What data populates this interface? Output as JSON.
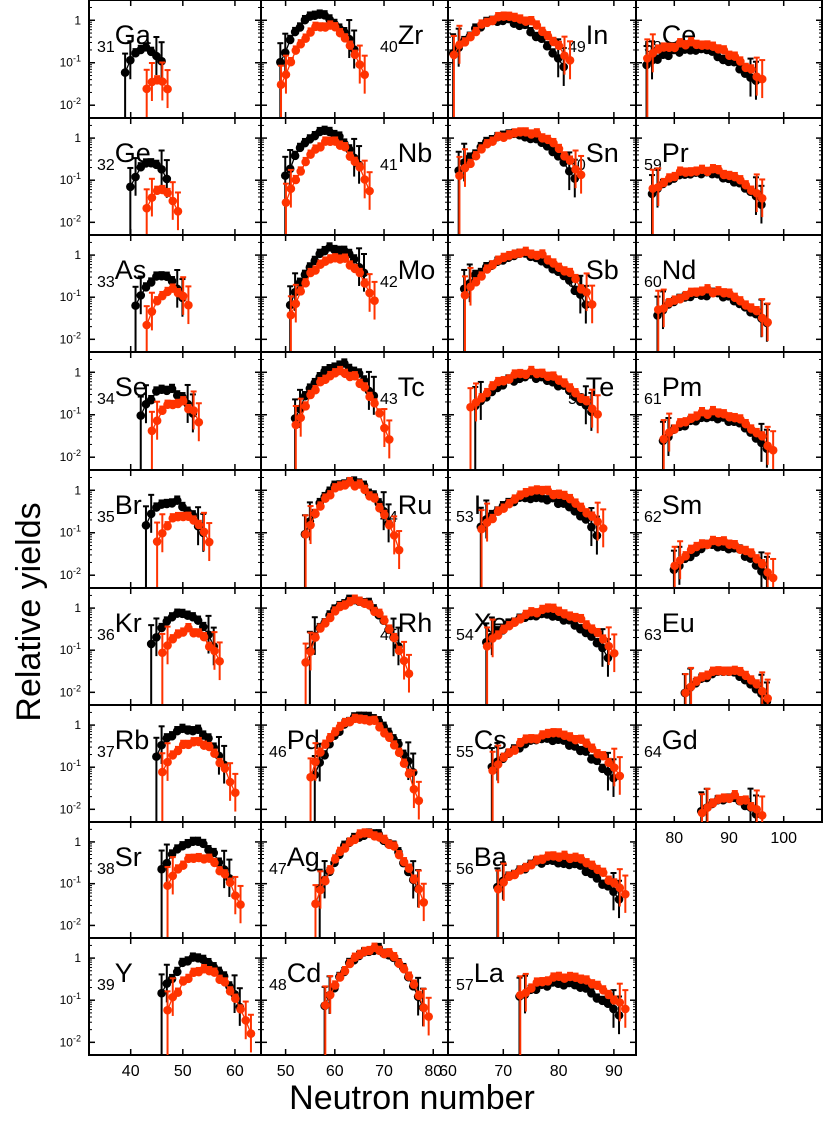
{
  "chart_data": {
    "type": "scatter",
    "title": "",
    "xlabel": "Neutron number",
    "ylabel": "Relative yields",
    "yscale": "log",
    "ylim": [
      0.005,
      3
    ],
    "y_ticks": [
      {
        "base": "10",
        "exp": "-2",
        "value": 0.01
      },
      {
        "base": "10",
        "exp": "-1",
        "value": 0.1
      },
      {
        "base": "1",
        "exp": "",
        "value": 1
      }
    ],
    "series_colors": {
      "black": "#000000",
      "red": "#ff3300"
    },
    "columns": [
      {
        "xlim": [
          32,
          65
        ],
        "x_ticks": [
          "40",
          "50",
          "60"
        ],
        "x_tick_values": [
          40,
          50,
          60
        ]
      },
      {
        "xlim": [
          45,
          83
        ],
        "x_ticks": [
          "50",
          "60",
          "70",
          "80"
        ],
        "x_tick_values": [
          50,
          60,
          70,
          80
        ]
      },
      {
        "xlim": [
          60,
          94
        ],
        "x_ticks": [
          "60",
          "70",
          "80",
          "90"
        ],
        "x_tick_values": [
          60,
          70,
          80,
          90
        ]
      },
      {
        "xlim": [
          73,
          107
        ],
        "x_ticks": [
          "80",
          "90",
          "100"
        ],
        "x_tick_values": [
          80,
          90,
          100
        ]
      }
    ],
    "panels": [
      {
        "z": "31",
        "el": "Ga",
        "col": 0,
        "row": 0,
        "label_pos": "left",
        "black": {
          "peak_n": 43,
          "peak_y": 0.22,
          "sigma": 2.5,
          "n_min": 39,
          "n_max": 46
        },
        "red": {
          "peak_n": 45,
          "peak_y": 0.04,
          "sigma": 2.0,
          "n_min": 43,
          "n_max": 47
        }
      },
      {
        "z": "32",
        "el": "Ge",
        "col": 0,
        "row": 1,
        "label_pos": "left",
        "black": {
          "peak_n": 44,
          "peak_y": 0.25,
          "sigma": 2.5,
          "n_min": 40,
          "n_max": 47
        },
        "red": {
          "peak_n": 46,
          "peak_y": 0.06,
          "sigma": 2.0,
          "n_min": 43,
          "n_max": 49
        }
      },
      {
        "z": "33",
        "el": "As",
        "col": 0,
        "row": 2,
        "label_pos": "left",
        "black": {
          "peak_n": 46,
          "peak_y": 0.3,
          "sigma": 2.8,
          "n_min": 41,
          "n_max": 50
        },
        "red": {
          "peak_n": 48,
          "peak_y": 0.15,
          "sigma": 2.5,
          "n_min": 43,
          "n_max": 51
        }
      },
      {
        "z": "34",
        "el": "Se",
        "col": 0,
        "row": 3,
        "label_pos": "left",
        "black": {
          "peak_n": 47,
          "peak_y": 0.4,
          "sigma": 3.0,
          "n_min": 42,
          "n_max": 52
        },
        "red": {
          "peak_n": 49,
          "peak_y": 0.2,
          "sigma": 2.8,
          "n_min": 44,
          "n_max": 53
        }
      },
      {
        "z": "35",
        "el": "Br",
        "col": 0,
        "row": 4,
        "label_pos": "left",
        "black": {
          "peak_n": 48,
          "peak_y": 0.55,
          "sigma": 3.2,
          "n_min": 43,
          "n_max": 54
        },
        "red": {
          "peak_n": 50,
          "peak_y": 0.25,
          "sigma": 3.0,
          "n_min": 45,
          "n_max": 55
        }
      },
      {
        "z": "36",
        "el": "Kr",
        "col": 0,
        "row": 5,
        "label_pos": "left",
        "black": {
          "peak_n": 50,
          "peak_y": 0.7,
          "sigma": 3.3,
          "n_min": 44,
          "n_max": 56
        },
        "red": {
          "peak_n": 51,
          "peak_y": 0.3,
          "sigma": 3.2,
          "n_min": 46,
          "n_max": 57
        }
      },
      {
        "z": "37",
        "el": "Rb",
        "col": 0,
        "row": 6,
        "label_pos": "left",
        "black": {
          "peak_n": 51,
          "peak_y": 0.85,
          "sigma": 3.5,
          "n_min": 45,
          "n_max": 58
        },
        "red": {
          "peak_n": 52,
          "peak_y": 0.4,
          "sigma": 3.4,
          "n_min": 46,
          "n_max": 60
        }
      },
      {
        "z": "38",
        "el": "Sr",
        "col": 0,
        "row": 7,
        "label_pos": "left",
        "black": {
          "peak_n": 52,
          "peak_y": 0.95,
          "sigma": 3.5,
          "n_min": 46,
          "n_max": 59
        },
        "red": {
          "peak_n": 53,
          "peak_y": 0.45,
          "sigma": 3.4,
          "n_min": 47,
          "n_max": 61
        }
      },
      {
        "z": "39",
        "el": "Y",
        "col": 0,
        "row": 8,
        "label_pos": "left",
        "black": {
          "peak_n": 53,
          "peak_y": 1.0,
          "sigma": 3.5,
          "n_min": 46,
          "n_max": 61
        },
        "red": {
          "peak_n": 54,
          "peak_y": 0.5,
          "sigma": 3.4,
          "n_min": 47,
          "n_max": 63
        }
      },
      {
        "z": "40",
        "el": "Zr",
        "col": 1,
        "row": 0,
        "label_pos": "right",
        "black": {
          "peak_n": 57,
          "peak_y": 1.3,
          "sigma": 3.6,
          "n_min": 49,
          "n_max": 64
        },
        "red": {
          "peak_n": 58,
          "peak_y": 0.75,
          "sigma": 3.5,
          "n_min": 49,
          "n_max": 66
        }
      },
      {
        "z": "41",
        "el": "Nb",
        "col": 1,
        "row": 1,
        "label_pos": "right",
        "black": {
          "peak_n": 58,
          "peak_y": 1.4,
          "sigma": 3.6,
          "n_min": 50,
          "n_max": 65
        },
        "red": {
          "peak_n": 59,
          "peak_y": 0.8,
          "sigma": 3.5,
          "n_min": 50,
          "n_max": 67
        }
      },
      {
        "z": "42",
        "el": "Mo",
        "col": 1,
        "row": 2,
        "label_pos": "right",
        "black": {
          "peak_n": 60,
          "peak_y": 1.5,
          "sigma": 3.6,
          "n_min": 51,
          "n_max": 66
        },
        "red": {
          "peak_n": 60,
          "peak_y": 0.9,
          "sigma": 3.6,
          "n_min": 51,
          "n_max": 68
        }
      },
      {
        "z": "43",
        "el": "Tc",
        "col": 1,
        "row": 3,
        "label_pos": "right",
        "black": {
          "peak_n": 61,
          "peak_y": 1.5,
          "sigma": 3.7,
          "n_min": 52,
          "n_max": 68
        },
        "red": {
          "peak_n": 61,
          "peak_y": 1.0,
          "sigma": 3.7,
          "n_min": 52,
          "n_max": 71
        }
      },
      {
        "z": "44",
        "el": "Ru",
        "col": 1,
        "row": 4,
        "label_pos": "right",
        "black": {
          "peak_n": 63,
          "peak_y": 1.6,
          "sigma": 3.8,
          "n_min": 54,
          "n_max": 71
        },
        "red": {
          "peak_n": 63,
          "peak_y": 1.4,
          "sigma": 3.8,
          "n_min": 54,
          "n_max": 73
        }
      },
      {
        "z": "45",
        "el": "Rh",
        "col": 1,
        "row": 5,
        "label_pos": "right",
        "black": {
          "peak_n": 64,
          "peak_y": 1.6,
          "sigma": 3.9,
          "n_min": 55,
          "n_max": 73
        },
        "red": {
          "peak_n": 64,
          "peak_y": 1.5,
          "sigma": 3.9,
          "n_min": 54,
          "n_max": 75
        }
      },
      {
        "z": "46",
        "el": "Pd",
        "col": 1,
        "row": 6,
        "label_pos": "left",
        "black": {
          "peak_n": 66,
          "peak_y": 1.6,
          "sigma": 4.0,
          "n_min": 56,
          "n_max": 76
        },
        "red": {
          "peak_n": 65,
          "peak_y": 1.5,
          "sigma": 4.0,
          "n_min": 55,
          "n_max": 77
        }
      },
      {
        "z": "47",
        "el": "Ag",
        "col": 1,
        "row": 7,
        "label_pos": "left",
        "black": {
          "peak_n": 67,
          "peak_y": 1.6,
          "sigma": 4.0,
          "n_min": 57,
          "n_max": 77
        },
        "red": {
          "peak_n": 67,
          "peak_y": 1.6,
          "sigma": 4.0,
          "n_min": 56,
          "n_max": 78
        }
      },
      {
        "z": "48",
        "el": "Cd",
        "col": 1,
        "row": 8,
        "label_pos": "left",
        "black": {
          "peak_n": 68,
          "peak_y": 1.6,
          "sigma": 4.0,
          "n_min": 58,
          "n_max": 78
        },
        "red": {
          "peak_n": 68,
          "peak_y": 1.6,
          "sigma": 4.0,
          "n_min": 58,
          "n_max": 79
        }
      },
      {
        "z": "49",
        "el": "In",
        "col": 2,
        "row": 0,
        "label_pos": "right",
        "black": {
          "peak_n": 70,
          "peak_y": 1.0,
          "sigma": 4.8,
          "n_min": 61,
          "n_max": 81
        },
        "red": {
          "peak_n": 71,
          "peak_y": 1.2,
          "sigma": 5.0,
          "n_min": 61,
          "n_max": 82
        }
      },
      {
        "z": "50",
        "el": "Sn",
        "col": 2,
        "row": 1,
        "label_pos": "right",
        "black": {
          "peak_n": 72,
          "peak_y": 1.2,
          "sigma": 5.0,
          "n_min": 62,
          "n_max": 83
        },
        "red": {
          "peak_n": 73,
          "peak_y": 1.4,
          "sigma": 5.0,
          "n_min": 62,
          "n_max": 84
        }
      },
      {
        "z": "51",
        "el": "Sb",
        "col": 2,
        "row": 2,
        "label_pos": "right",
        "black": {
          "peak_n": 73,
          "peak_y": 1.0,
          "sigma": 5.2,
          "n_min": 63,
          "n_max": 85
        },
        "red": {
          "peak_n": 74,
          "peak_y": 1.1,
          "sigma": 5.2,
          "n_min": 63,
          "n_max": 86
        }
      },
      {
        "z": "52",
        "el": "Te",
        "col": 2,
        "row": 3,
        "label_pos": "right",
        "black": {
          "peak_n": 75,
          "peak_y": 0.8,
          "sigma": 5.5,
          "n_min": 65,
          "n_max": 86
        },
        "red": {
          "peak_n": 75,
          "peak_y": 1.0,
          "sigma": 5.5,
          "n_min": 64,
          "n_max": 87
        }
      },
      {
        "z": "53",
        "el": "I",
        "col": 2,
        "row": 4,
        "label_pos": "left",
        "black": {
          "peak_n": 76,
          "peak_y": 0.7,
          "sigma": 5.5,
          "n_min": 66,
          "n_max": 87
        },
        "red": {
          "peak_n": 77,
          "peak_y": 0.9,
          "sigma": 5.5,
          "n_min": 66,
          "n_max": 88
        }
      },
      {
        "z": "54",
        "el": "Xe",
        "col": 2,
        "row": 5,
        "label_pos": "left",
        "black": {
          "peak_n": 77,
          "peak_y": 0.7,
          "sigma": 5.6,
          "n_min": 67,
          "n_max": 89
        },
        "red": {
          "peak_n": 78,
          "peak_y": 0.9,
          "sigma": 5.6,
          "n_min": 67,
          "n_max": 90
        }
      },
      {
        "z": "55",
        "el": "Cs",
        "col": 2,
        "row": 6,
        "label_pos": "left",
        "black": {
          "peak_n": 78,
          "peak_y": 0.45,
          "sigma": 5.7,
          "n_min": 68,
          "n_max": 90
        },
        "red": {
          "peak_n": 79,
          "peak_y": 0.6,
          "sigma": 5.7,
          "n_min": 68,
          "n_max": 91
        }
      },
      {
        "z": "56",
        "el": "Ba",
        "col": 2,
        "row": 7,
        "label_pos": "left",
        "black": {
          "peak_n": 79,
          "peak_y": 0.35,
          "sigma": 5.8,
          "n_min": 69,
          "n_max": 91
        },
        "red": {
          "peak_n": 80,
          "peak_y": 0.45,
          "sigma": 5.8,
          "n_min": 69,
          "n_max": 92
        }
      },
      {
        "z": "57",
        "el": "La",
        "col": 2,
        "row": 8,
        "label_pos": "left",
        "black": {
          "peak_n": 80,
          "peak_y": 0.25,
          "sigma": 5.8,
          "n_min": 73,
          "n_max": 91
        },
        "red": {
          "peak_n": 81,
          "peak_y": 0.35,
          "sigma": 5.8,
          "n_min": 73,
          "n_max": 92
        }
      },
      {
        "z": "58",
        "el": "Ce",
        "col": 3,
        "row": 0,
        "label_pos": "left",
        "black": {
          "peak_n": 83,
          "peak_y": 0.2,
          "sigma": 6.5,
          "n_min": 75,
          "n_max": 95
        },
        "red": {
          "peak_n": 83,
          "peak_y": 0.28,
          "sigma": 6.5,
          "n_min": 75,
          "n_max": 96
        }
      },
      {
        "z": "59",
        "el": "Pr",
        "col": 3,
        "row": 1,
        "label_pos": "left",
        "black": {
          "peak_n": 85,
          "peak_y": 0.15,
          "sigma": 6.0,
          "n_min": 76,
          "n_max": 96
        },
        "red": {
          "peak_n": 85,
          "peak_y": 0.18,
          "sigma": 6.0,
          "n_min": 76,
          "n_max": 96
        }
      },
      {
        "z": "60",
        "el": "Nd",
        "col": 3,
        "row": 2,
        "label_pos": "left",
        "black": {
          "peak_n": 86,
          "peak_y": 0.12,
          "sigma": 6.0,
          "n_min": 77,
          "n_max": 97
        },
        "red": {
          "peak_n": 86,
          "peak_y": 0.14,
          "sigma": 6.0,
          "n_min": 77,
          "n_max": 97
        }
      },
      {
        "z": "61",
        "el": "Pm",
        "col": 3,
        "row": 3,
        "label_pos": "left",
        "black": {
          "peak_n": 87,
          "peak_y": 0.09,
          "sigma": 5.5,
          "n_min": 78,
          "n_max": 97
        },
        "red": {
          "peak_n": 87,
          "peak_y": 0.11,
          "sigma": 5.5,
          "n_min": 78,
          "n_max": 98
        }
      },
      {
        "z": "62",
        "el": "Sm",
        "col": 3,
        "row": 4,
        "label_pos": "left",
        "black": {
          "peak_n": 88,
          "peak_y": 0.05,
          "sigma": 5.0,
          "n_min": 80,
          "n_max": 97
        },
        "red": {
          "peak_n": 88,
          "peak_y": 0.06,
          "sigma": 5.0,
          "n_min": 80,
          "n_max": 98
        }
      },
      {
        "z": "63",
        "el": "Eu",
        "col": 3,
        "row": 5,
        "label_pos": "left",
        "black": {
          "peak_n": 89,
          "peak_y": 0.03,
          "sigma": 4.5,
          "n_min": 82,
          "n_max": 97
        },
        "red": {
          "peak_n": 89,
          "peak_y": 0.035,
          "sigma": 4.5,
          "n_min": 82,
          "n_max": 97
        }
      },
      {
        "z": "64",
        "el": "Gd",
        "col": 3,
        "row": 6,
        "label_pos": "left",
        "black": {
          "peak_n": 90,
          "peak_y": 0.018,
          "sigma": 4.0,
          "n_min": 85,
          "n_max": 96
        },
        "red": {
          "peak_n": 90,
          "peak_y": 0.02,
          "sigma": 4.0,
          "n_min": 85,
          "n_max": 97
        }
      }
    ]
  }
}
